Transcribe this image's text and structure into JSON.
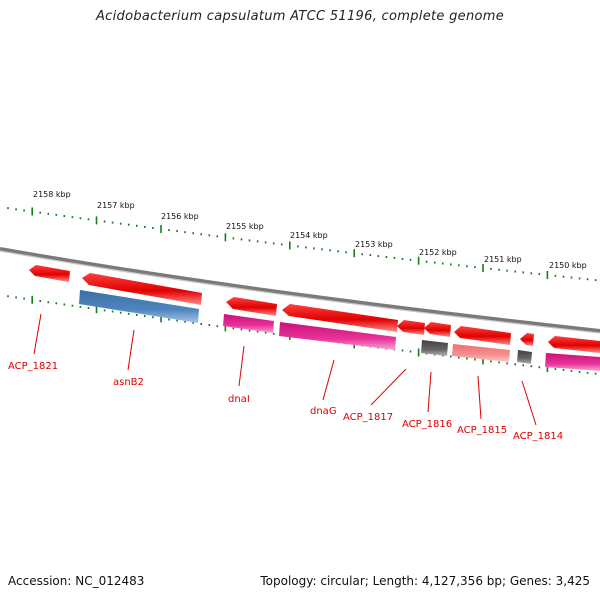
{
  "title": "Acidobacterium capsulatum ATCC 51196, complete genome",
  "footer": {
    "accession": "Accession: NC_012483",
    "summary": "Topology: circular; Length: 4,127,356 bp; Genes: 3,425"
  },
  "colors": {
    "backbone": "#808080",
    "tick_green": "#1a7a1a",
    "forward_gene": "#ff0000",
    "reverse_gene": "#ff0000",
    "cds_blue": "#4a7fb5",
    "cds_magenta": "#e0208a",
    "cds_gray": "#555555",
    "cds_pink": "#f08080",
    "label_red": "#dd0000"
  },
  "ruler": {
    "labels": [
      "2158 kbp",
      "2157 kbp",
      "2156 kbp",
      "2155 kbp",
      "2154 kbp",
      "2153 kbp",
      "2152 kbp",
      "2151 kbp",
      "2150 kbp"
    ]
  },
  "gene_labels": [
    "ACP_1821",
    "asnB2",
    "dnaI",
    "dnaG",
    "ACP_1817",
    "ACP_1816",
    "ACP_1815",
    "ACP_1814"
  ]
}
